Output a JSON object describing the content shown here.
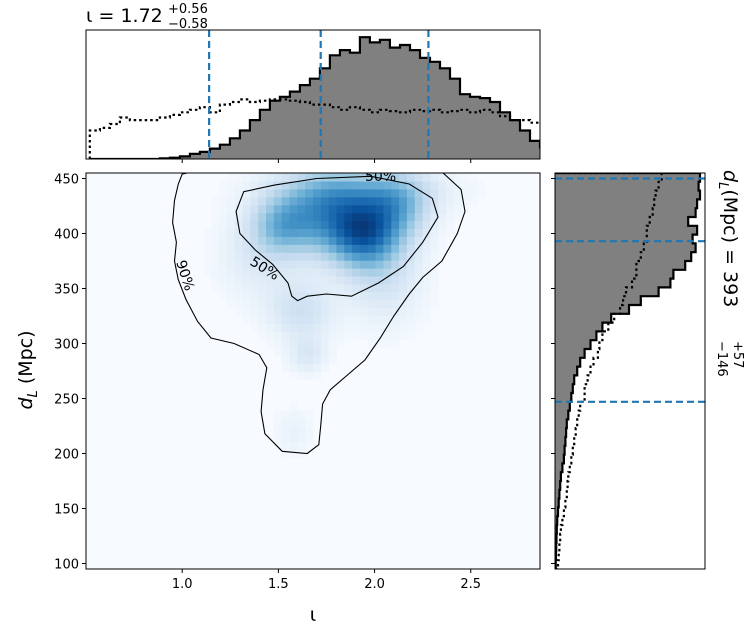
{
  "chart_data": {
    "type": "corner-2d-density",
    "x_variable_symbol": "ι",
    "y_variable_symbol": "d_L",
    "xlabel": "ι",
    "ylabel_main": "d",
    "ylabel_sub": "L",
    "ylabel_unit": " (Mpc)",
    "xlim": [
      0.5,
      2.86
    ],
    "ylim": [
      95,
      455
    ],
    "x_ticks": [
      1.0,
      1.5,
      2.0,
      2.5
    ],
    "x_tick_labels": [
      "1.0",
      "1.5",
      "2.0",
      "2.5"
    ],
    "y_ticks": [
      100,
      150,
      200,
      250,
      300,
      350,
      400,
      450
    ],
    "y_tick_labels": [
      "100",
      "150",
      "200",
      "250",
      "300",
      "350",
      "400",
      "450"
    ],
    "grid": false,
    "colormap": "Blues",
    "iota_summary": {
      "prefix": "ι = ",
      "median": "1.72",
      "plus": "+0.56",
      "minus": "−0.58"
    },
    "iota_quantiles": [
      1.14,
      1.72,
      2.28
    ],
    "dl_summary": {
      "prefix": "(Mpc) = ",
      "median": "393",
      "plus": "+57",
      "minus": "−146"
    },
    "dl_quantiles": [
      247,
      393,
      450
    ],
    "quantile_line_color": "#1f77b4",
    "density_blobs": [
      {
        "x": 1.95,
        "y": 400,
        "sx": 0.13,
        "sy": 22,
        "w": 1.0
      },
      {
        "x": 1.75,
        "y": 418,
        "sx": 0.16,
        "sy": 25,
        "w": 0.75
      },
      {
        "x": 1.52,
        "y": 408,
        "sx": 0.11,
        "sy": 18,
        "w": 0.55
      },
      {
        "x": 2.12,
        "y": 425,
        "sx": 0.12,
        "sy": 20,
        "w": 0.55
      },
      {
        "x": 1.62,
        "y": 330,
        "sx": 0.12,
        "sy": 18,
        "w": 0.3
      },
      {
        "x": 1.65,
        "y": 290,
        "sx": 0.07,
        "sy": 12,
        "w": 0.22
      },
      {
        "x": 2.05,
        "y": 360,
        "sx": 0.14,
        "sy": 30,
        "w": 0.25
      },
      {
        "x": 1.58,
        "y": 220,
        "sx": 0.07,
        "sy": 14,
        "w": 0.12
      },
      {
        "x": 1.9,
        "y": 440,
        "sx": 0.3,
        "sy": 15,
        "w": 0.35
      },
      {
        "x": 1.4,
        "y": 380,
        "sx": 0.15,
        "sy": 28,
        "w": 0.2
      }
    ],
    "contour_labels": [
      "50%",
      "90%",
      "50%"
    ],
    "contour_50": [
      [
        1.28,
        420
      ],
      [
        1.32,
        438
      ],
      [
        1.48,
        444
      ],
      [
        1.7,
        450
      ],
      [
        1.98,
        452
      ],
      [
        2.18,
        445
      ],
      [
        2.3,
        432
      ],
      [
        2.33,
        415
      ],
      [
        2.25,
        392
      ],
      [
        2.15,
        370
      ],
      [
        2.02,
        355
      ],
      [
        1.88,
        343
      ],
      [
        1.75,
        345
      ],
      [
        1.65,
        343
      ],
      [
        1.6,
        339
      ],
      [
        1.57,
        343
      ],
      [
        1.55,
        355
      ],
      [
        1.47,
        372
      ],
      [
        1.38,
        385
      ],
      [
        1.3,
        400
      ]
    ],
    "contour_90": [
      [
        0.96,
        430
      ],
      [
        0.98,
        445
      ],
      [
        1.0,
        454
      ],
      [
        1.1,
        458
      ],
      [
        1.5,
        460
      ],
      [
        2.0,
        460
      ],
      [
        2.35,
        456
      ],
      [
        2.45,
        440
      ],
      [
        2.47,
        420
      ],
      [
        2.43,
        400
      ],
      [
        2.35,
        375
      ],
      [
        2.25,
        360
      ],
      [
        2.18,
        345
      ],
      [
        2.1,
        325
      ],
      [
        2.03,
        305
      ],
      [
        1.95,
        285
      ],
      [
        1.85,
        270
      ],
      [
        1.77,
        258
      ],
      [
        1.73,
        245
      ],
      [
        1.72,
        225
      ],
      [
        1.71,
        208
      ],
      [
        1.65,
        200
      ],
      [
        1.52,
        202
      ],
      [
        1.43,
        218
      ],
      [
        1.41,
        238
      ],
      [
        1.42,
        258
      ],
      [
        1.44,
        278
      ],
      [
        1.4,
        290
      ],
      [
        1.27,
        300
      ],
      [
        1.15,
        305
      ],
      [
        1.08,
        320
      ],
      [
        1.02,
        340
      ],
      [
        0.98,
        358
      ],
      [
        0.96,
        375
      ],
      [
        0.97,
        392
      ],
      [
        0.95,
        410
      ]
    ],
    "top_hist": {
      "edges_start": 0.52,
      "bin_width": 0.052,
      "filled_values": [
        0,
        0,
        0,
        0,
        0,
        0,
        0,
        0.005,
        0.01,
        0.02,
        0.04,
        0.055,
        0.08,
        0.11,
        0.16,
        0.22,
        0.3,
        0.38,
        0.45,
        0.48,
        0.52,
        0.57,
        0.62,
        0.7,
        0.8,
        0.84,
        0.82,
        0.94,
        0.9,
        0.92,
        0.86,
        0.88,
        0.84,
        0.78,
        0.75,
        0.7,
        0.62,
        0.5,
        0.48,
        0.47,
        0.44,
        0.36,
        0.3,
        0.22,
        0.14,
        0.09,
        0.07,
        0.04,
        0.03,
        0.02,
        0.01,
        0.01,
        0.005,
        0.005,
        0.01
      ],
      "dotted_values": [
        0.22,
        0.24,
        0.27,
        0.32,
        0.3,
        0.3,
        0.3,
        0.32,
        0.34,
        0.36,
        0.38,
        0.4,
        0.36,
        0.42,
        0.44,
        0.46,
        0.44,
        0.45,
        0.46,
        0.46,
        0.45,
        0.44,
        0.42,
        0.42,
        0.4,
        0.38,
        0.4,
        0.38,
        0.36,
        0.38,
        0.37,
        0.36,
        0.38,
        0.37,
        0.38,
        0.36,
        0.37,
        0.38,
        0.36,
        0.38,
        0.36,
        0.33,
        0.3,
        0.3,
        0.28,
        0.28,
        0.28,
        0.27,
        0.28,
        0.27,
        0.26,
        0.25,
        0.24,
        0.2,
        0.14
      ]
    },
    "right_hist": {
      "edges_start": 95,
      "bin_width": 8,
      "filled_values": [
        0.005,
        0.006,
        0.008,
        0.01,
        0.012,
        0.015,
        0.02,
        0.025,
        0.03,
        0.035,
        0.04,
        0.05,
        0.06,
        0.065,
        0.07,
        0.075,
        0.08,
        0.09,
        0.1,
        0.11,
        0.12,
        0.13,
        0.15,
        0.17,
        0.2,
        0.24,
        0.28,
        0.32,
        0.38,
        0.5,
        0.58,
        0.7,
        0.78,
        0.8,
        0.88,
        0.92,
        0.95,
        0.93,
        0.96,
        0.9,
        0.95,
        0.96,
        0.98,
        0.97,
        0.98
      ],
      "dotted_values": [
        0.02,
        0.025,
        0.03,
        0.035,
        0.04,
        0.05,
        0.06,
        0.07,
        0.08,
        0.085,
        0.09,
        0.1,
        0.11,
        0.12,
        0.13,
        0.14,
        0.15,
        0.16,
        0.17,
        0.2,
        0.2,
        0.22,
        0.24,
        0.26,
        0.29,
        0.3,
        0.32,
        0.36,
        0.4,
        0.44,
        0.46,
        0.48,
        0.52,
        0.55,
        0.55,
        0.58,
        0.6,
        0.62,
        0.62,
        0.64,
        0.66,
        0.67,
        0.68,
        0.7,
        0.72
      ]
    }
  }
}
